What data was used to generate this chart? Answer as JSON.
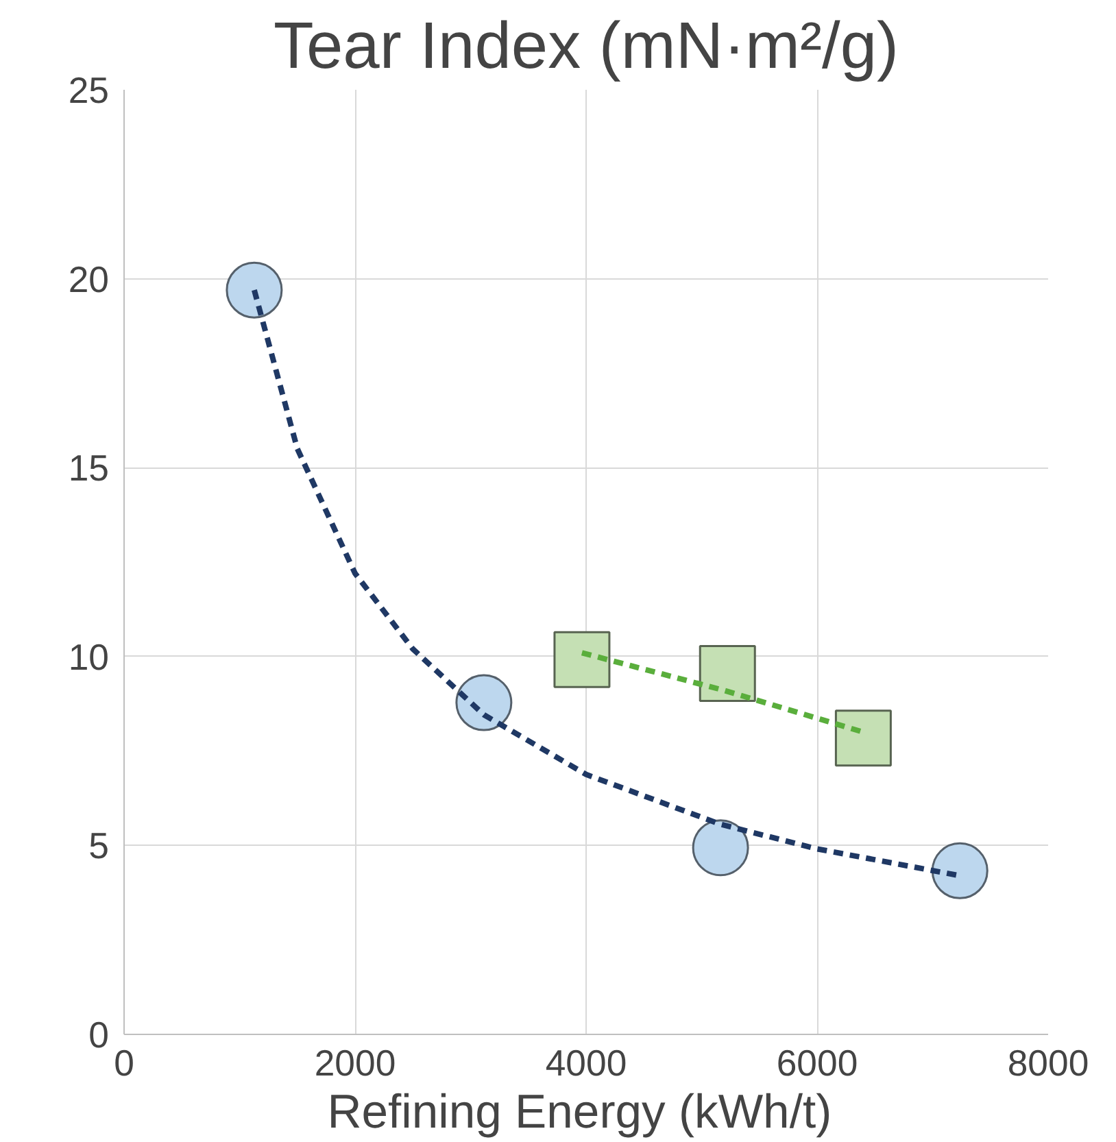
{
  "chart_data": {
    "type": "scatter",
    "title": "Tear Index (mN·m²/g)",
    "xlabel": "Refining Energy  (kWh/t)",
    "xlim": [
      0,
      8000
    ],
    "xticks": [
      0,
      2000,
      4000,
      6000,
      8000
    ],
    "ylim": [
      0,
      25
    ],
    "yticks": [
      0,
      5,
      10,
      15,
      20,
      25
    ],
    "grid": true,
    "series": [
      {
        "type": "line",
        "color": "#1f3864",
        "line_style": "dashed",
        "marker": "none",
        "x": [
          1127,
          1500,
          2000,
          2500,
          3115,
          4000,
          5164,
          6000,
          7236
        ],
        "values": [
          19.7,
          15.5,
          12.2,
          10.2,
          8.46,
          6.88,
          5.56,
          4.91,
          4.2
        ]
      },
      {
        "type": "line",
        "color": "#5aae3c",
        "line_style": "dashed",
        "marker": "none",
        "x": [
          3964,
          5200,
          6400
        ],
        "values": [
          10.1,
          9.1,
          8.0
        ]
      },
      {
        "color": "#bdd7ee",
        "marker": "circle",
        "x": [
          1127,
          3115,
          5164,
          7236
        ],
        "values": [
          19.7,
          8.78,
          4.94,
          4.33
        ]
      },
      {
        "color": "#c5e0b4",
        "marker": "square",
        "x": [
          3964,
          5224,
          6400
        ],
        "values": [
          9.92,
          9.55,
          7.84
        ]
      }
    ]
  }
}
